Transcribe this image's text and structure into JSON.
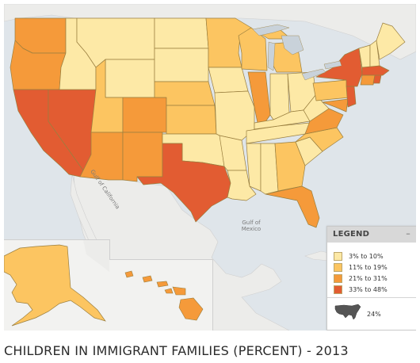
{
  "title": "CHILDREN IN IMMIGRANT FAMILIES (PERCENT) - 2013",
  "legend": {
    "title": "LEGEND",
    "collapse_symbol": "–",
    "items": [
      {
        "label": "3% to 10%",
        "color": "#fde9a6"
      },
      {
        "label": "11% to 19%",
        "color": "#fcc561"
      },
      {
        "label": "21% to 31%",
        "color": "#f59a3a"
      },
      {
        "label": "33% to 48%",
        "color": "#e25c32"
      }
    ],
    "us_total": "24%",
    "us_icon": "us-map-icon"
  },
  "map_labels": {
    "gulf_california_1": "Gulf of",
    "gulf_california_2": "California",
    "gulf_mexico_1": "Gulf of",
    "gulf_mexico_2": "Mexico"
  },
  "colors": {
    "land_background": "#f2f2f0",
    "water": "#c9d2da",
    "state_border": "#9a7f3f"
  }
}
